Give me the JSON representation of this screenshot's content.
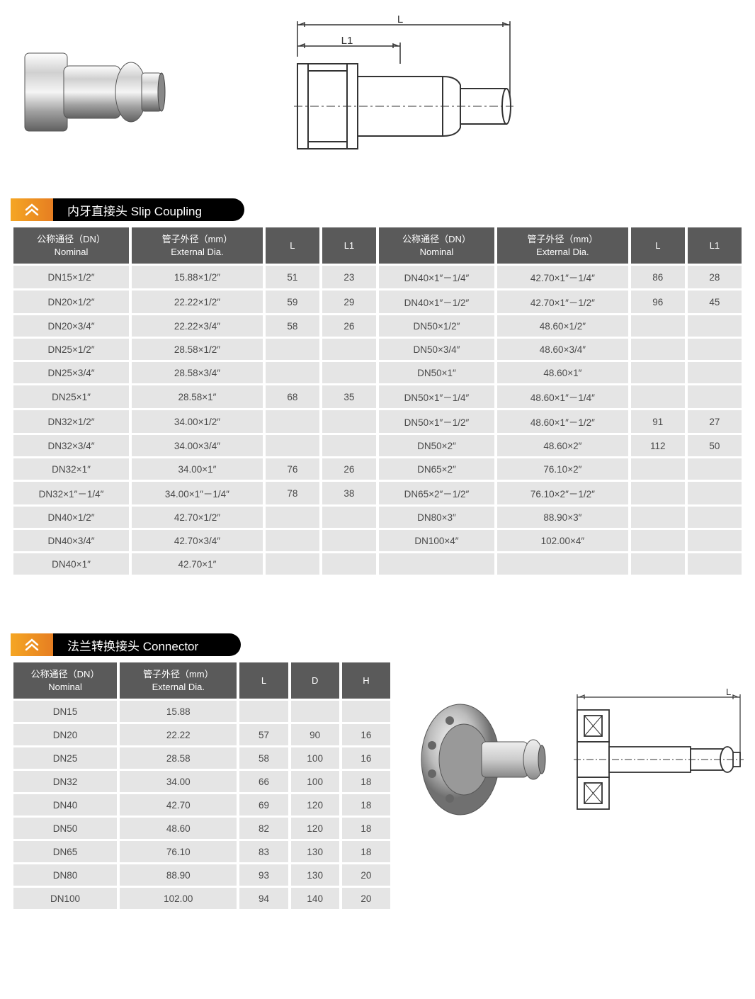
{
  "section1": {
    "title": "内牙直接头 Slip Coupling",
    "headers": [
      "公称通径（DN）\nNominal",
      "管子外径（mm）\nExternal Dia.",
      "L",
      "L1",
      "公称通径（DN）\nNominal",
      "管子外径（mm）\nExternal Dia.",
      "L",
      "L1"
    ],
    "rows": [
      [
        "DN15×1/2″",
        "15.88×1/2″",
        "51",
        "23",
        "DN40×1″－1/4″",
        "42.70×1″－1/4″",
        "86",
        "28"
      ],
      [
        "DN20×1/2″",
        "22.22×1/2″",
        "59",
        "29",
        "DN40×1″－1/2″",
        "42.70×1″－1/2″",
        "96",
        "45"
      ],
      [
        "DN20×3/4″",
        "22.22×3/4″",
        "58",
        "26",
        "DN50×1/2″",
        "48.60×1/2″",
        "",
        ""
      ],
      [
        "DN25×1/2″",
        "28.58×1/2″",
        "",
        "",
        "DN50×3/4″",
        "48.60×3/4″",
        "",
        ""
      ],
      [
        "DN25×3/4″",
        "28.58×3/4″",
        "",
        "",
        "DN50×1″",
        "48.60×1″",
        "",
        ""
      ],
      [
        "DN25×1″",
        "28.58×1″",
        "68",
        "35",
        "DN50×1″－1/4″",
        "48.60×1″－1/4″",
        "",
        ""
      ],
      [
        "DN32×1/2″",
        "34.00×1/2″",
        "",
        "",
        "DN50×1″－1/2″",
        "48.60×1″－1/2″",
        "91",
        "27"
      ],
      [
        "DN32×3/4″",
        "34.00×3/4″",
        "",
        "",
        "DN50×2″",
        "48.60×2″",
        "112",
        "50"
      ],
      [
        "DN32×1″",
        "34.00×1″",
        "76",
        "26",
        "DN65×2″",
        "76.10×2″",
        "",
        ""
      ],
      [
        "DN32×1″－1/4″",
        "34.00×1″－1/4″",
        "78",
        "38",
        "DN65×2″－1/2″",
        "76.10×2″－1/2″",
        "",
        ""
      ],
      [
        "DN40×1/2″",
        "42.70×1/2″",
        "",
        "",
        "DN80×3″",
        "88.90×3″",
        "",
        ""
      ],
      [
        "DN40×3/4″",
        "42.70×3/4″",
        "",
        "",
        "DN100×4″",
        "102.00×4″",
        "",
        ""
      ],
      [
        "DN40×1″",
        "42.70×1″",
        "",
        "",
        "",
        "",
        "",
        ""
      ]
    ]
  },
  "section2": {
    "title": "法兰转换接头 Connector",
    "headers": [
      "公称通径（DN）\nNominal",
      "管子外径（mm）\nExternal Dia.",
      "L",
      "D",
      "H"
    ],
    "rows": [
      [
        "DN15",
        "15.88",
        "",
        "",
        ""
      ],
      [
        "DN20",
        "22.22",
        "57",
        "90",
        "16"
      ],
      [
        "DN25",
        "28.58",
        "58",
        "100",
        "16"
      ],
      [
        "DN32",
        "34.00",
        "66",
        "100",
        "18"
      ],
      [
        "DN40",
        "42.70",
        "69",
        "120",
        "18"
      ],
      [
        "DN50",
        "48.60",
        "82",
        "120",
        "18"
      ],
      [
        "DN65",
        "76.10",
        "83",
        "130",
        "18"
      ],
      [
        "DN80",
        "88.90",
        "93",
        "130",
        "20"
      ],
      [
        "DN100",
        "102.00",
        "94",
        "140",
        "20"
      ]
    ]
  },
  "diagram_labels": {
    "L": "L",
    "L1": "L1"
  },
  "colors": {
    "header_bg": "#5a5a5a",
    "cell_bg": "#e5e5e5",
    "icon_gradient_start": "#f5a623",
    "icon_gradient_end": "#e67e22",
    "title_bg": "#000000"
  }
}
